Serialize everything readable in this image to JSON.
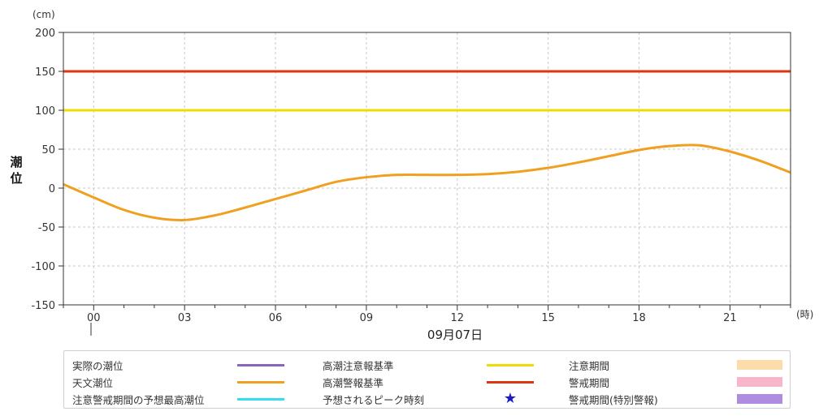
{
  "chart_data": {
    "type": "line",
    "ylabel": "潮位",
    "yunit": "(cm)",
    "xunit": "(時)",
    "date_label": "09月07日",
    "ylim": [
      -150,
      200
    ],
    "yticks": [
      200,
      150,
      100,
      50,
      0,
      -50,
      -100,
      -150
    ],
    "xlim": [
      -1,
      23
    ],
    "xticks": [
      0,
      3,
      6,
      9,
      12,
      15,
      18,
      21
    ],
    "xtick_labels": [
      "00",
      "03",
      "06",
      "09",
      "12",
      "15",
      "18",
      "21"
    ],
    "grid": true,
    "thresholds": [
      {
        "name": "高潮警報基準",
        "value": 150,
        "color": "#dd3311"
      },
      {
        "name": "高潮注意報基準",
        "value": 100,
        "color": "#eedd00"
      }
    ],
    "series": [
      {
        "name": "天文潮位",
        "color": "#f0a020",
        "x": [
          -1,
          0,
          1,
          2,
          3,
          4,
          5,
          6,
          7,
          8,
          9,
          10,
          11,
          12,
          13,
          14,
          15,
          16,
          17,
          18,
          19,
          20,
          21,
          22,
          23
        ],
        "y": [
          5,
          -12,
          -28,
          -38,
          -41,
          -35,
          -25,
          -14,
          -3,
          8,
          14,
          17,
          17,
          17,
          18,
          21,
          26,
          33,
          41,
          49,
          54,
          55,
          47,
          35,
          20
        ]
      }
    ]
  },
  "legend": {
    "items": [
      {
        "label": "実際の潮位",
        "kind": "line",
        "color": "#8866bb"
      },
      {
        "label": "高潮注意報基準",
        "kind": "line",
        "color": "#eedd00"
      },
      {
        "label": "注意期間",
        "kind": "rect",
        "color": "#fddcac"
      },
      {
        "label": "天文潮位",
        "kind": "line",
        "color": "#f0a020"
      },
      {
        "label": "高潮警報基準",
        "kind": "line",
        "color": "#dd3311"
      },
      {
        "label": "警戒期間",
        "kind": "rect",
        "color": "#f9b6cb"
      },
      {
        "label": "注意警戒期間の予想最高潮位",
        "kind": "line",
        "color": "#33ddee"
      },
      {
        "label": "予想されるピーク時刻",
        "kind": "star",
        "color": "#1a1acc"
      },
      {
        "label": "警戒期間(特別警報)",
        "kind": "rect",
        "color": "#b08ce0"
      }
    ]
  }
}
